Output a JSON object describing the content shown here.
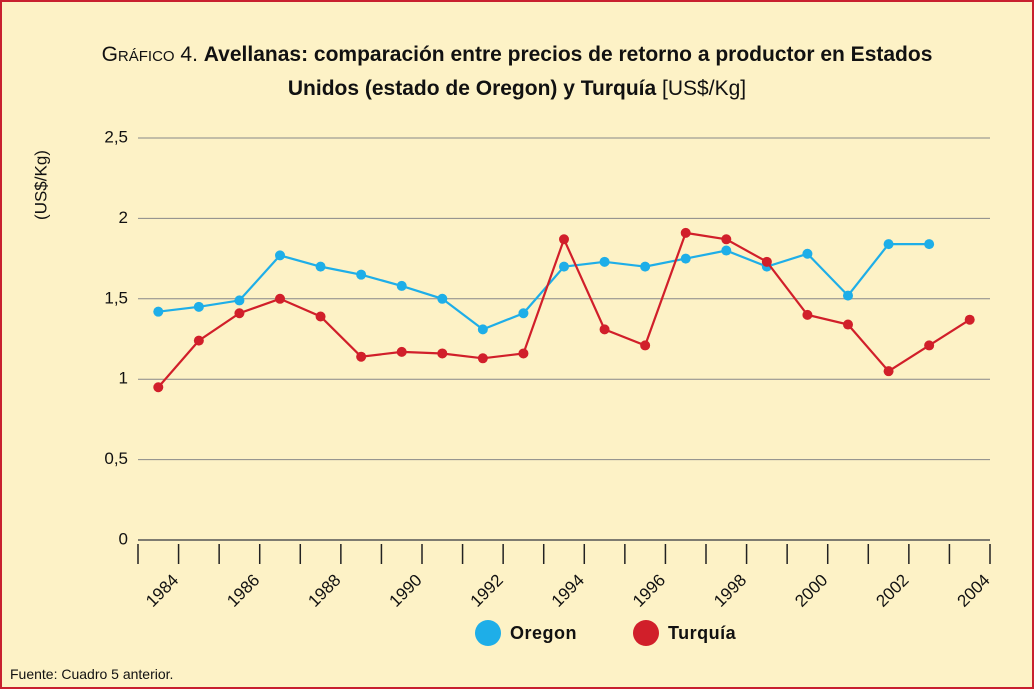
{
  "chart_data": {
    "type": "line",
    "title_prefix": "Gráfico 4.",
    "title": "Avellanas: comparación entre precios de retorno a productor en Estados Unidos (estado de Oregon) y Turquía",
    "title_suffix": "[US$/Kg]",
    "y_label": "(US$/Kg)",
    "source": "Fuente: Cuadro 5 anterior.",
    "categories": [
      "1984",
      null,
      "1986",
      null,
      "1988",
      null,
      "1990",
      null,
      "1992",
      null,
      "1994",
      null,
      "1996",
      null,
      "1998",
      null,
      "2000",
      null,
      "2002",
      null,
      "2004"
    ],
    "series": [
      {
        "name": "Oregon",
        "color": "#1eaee8",
        "values": [
          1.42,
          1.45,
          1.49,
          1.77,
          1.7,
          1.65,
          1.58,
          1.5,
          1.31,
          1.41,
          1.7,
          1.73,
          1.7,
          1.75,
          1.8,
          1.7,
          1.78,
          1.52,
          1.84,
          1.84,
          null
        ]
      },
      {
        "name": "Turquía",
        "color": "#d11f2a",
        "values": [
          0.95,
          1.24,
          1.41,
          1.5,
          1.39,
          1.14,
          1.17,
          1.16,
          1.13,
          1.16,
          1.87,
          1.31,
          1.21,
          1.91,
          1.87,
          1.73,
          1.4,
          1.34,
          1.05,
          1.21,
          1.37
        ]
      }
    ],
    "ylim": [
      0,
      2.5
    ],
    "yticks": [
      0,
      {
        "value": 0.5,
        "label": "0,5"
      },
      1,
      {
        "value": 1.5,
        "label": "1,5"
      },
      2,
      {
        "value": 2.5,
        "label": "2,5"
      }
    ],
    "grid": true,
    "legend": "bottom"
  }
}
